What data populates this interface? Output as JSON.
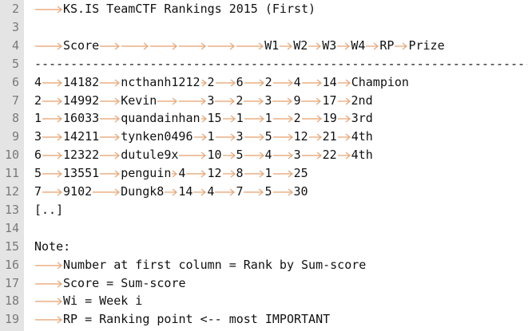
{
  "editor": {
    "line_numbers": [
      "2",
      "3",
      "4",
      "5",
      "6",
      "7",
      "8",
      "9",
      "10",
      "11",
      "12",
      "13",
      "14",
      "15",
      "16",
      "17",
      "18",
      "19"
    ],
    "tab_arrow_color": "#e8a97a",
    "lines": [
      [
        {
          "tab": 1
        },
        {
          "t": "KS.IS TeamCTF Rankings 2015 (First)"
        }
      ],
      [],
      [
        {
          "tab": 1
        },
        {
          "t": "Score"
        },
        {
          "tab": 6
        },
        {
          "t": "W1"
        },
        {
          "tab": 1
        },
        {
          "t": "W2"
        },
        {
          "tab": 1
        },
        {
          "t": "W3"
        },
        {
          "tab": 1
        },
        {
          "t": "W4"
        },
        {
          "tab": 1
        },
        {
          "t": "RP"
        },
        {
          "tab": 1
        },
        {
          "t": "Prize"
        }
      ],
      [
        {
          "t": "-----------------------------------------------------------------------"
        }
      ],
      [
        {
          "t": "4"
        },
        {
          "tab": 1
        },
        {
          "t": "14182"
        },
        {
          "tab": 1
        },
        {
          "t": "ncthanh1212"
        },
        {
          "tab": 1
        },
        {
          "t": "2"
        },
        {
          "tab": 1
        },
        {
          "t": "6"
        },
        {
          "tab": 1
        },
        {
          "t": "2"
        },
        {
          "tab": 1
        },
        {
          "t": "4"
        },
        {
          "tab": 1
        },
        {
          "t": "14"
        },
        {
          "tab": 1
        },
        {
          "t": "Champion"
        }
      ],
      [
        {
          "t": "2"
        },
        {
          "tab": 1
        },
        {
          "t": "14992"
        },
        {
          "tab": 1
        },
        {
          "t": "Kevin"
        },
        {
          "tab": 2
        },
        {
          "t": "3"
        },
        {
          "tab": 1
        },
        {
          "t": "2"
        },
        {
          "tab": 1
        },
        {
          "t": "3"
        },
        {
          "tab": 1
        },
        {
          "t": "9"
        },
        {
          "tab": 1
        },
        {
          "t": "17"
        },
        {
          "tab": 1
        },
        {
          "t": "2nd"
        }
      ],
      [
        {
          "t": "1"
        },
        {
          "tab": 1
        },
        {
          "t": "16033"
        },
        {
          "tab": 1
        },
        {
          "t": "quandainhan"
        },
        {
          "tab": 1
        },
        {
          "t": "15"
        },
        {
          "tab": 1
        },
        {
          "t": "1"
        },
        {
          "tab": 1
        },
        {
          "t": "1"
        },
        {
          "tab": 1
        },
        {
          "t": "2"
        },
        {
          "tab": 1
        },
        {
          "t": "19"
        },
        {
          "tab": 1
        },
        {
          "t": "3rd"
        }
      ],
      [
        {
          "t": "3"
        },
        {
          "tab": 1
        },
        {
          "t": "14211"
        },
        {
          "tab": 1
        },
        {
          "t": "tynken0496"
        },
        {
          "tab": 1
        },
        {
          "t": "1"
        },
        {
          "tab": 1
        },
        {
          "t": "3"
        },
        {
          "tab": 1
        },
        {
          "t": "5"
        },
        {
          "tab": 1
        },
        {
          "t": "12"
        },
        {
          "tab": 1
        },
        {
          "t": "21"
        },
        {
          "tab": 1
        },
        {
          "t": "4th"
        }
      ],
      [
        {
          "t": "6"
        },
        {
          "tab": 1
        },
        {
          "t": "12322"
        },
        {
          "tab": 1
        },
        {
          "t": "dutule9x"
        },
        {
          "tab": 1
        },
        {
          "t": "10"
        },
        {
          "tab": 1
        },
        {
          "t": "5"
        },
        {
          "tab": 1
        },
        {
          "t": "4"
        },
        {
          "tab": 1
        },
        {
          "t": "3"
        },
        {
          "tab": 1
        },
        {
          "t": "22"
        },
        {
          "tab": 1
        },
        {
          "t": "4th"
        }
      ],
      [
        {
          "t": "5"
        },
        {
          "tab": 1
        },
        {
          "t": "13551"
        },
        {
          "tab": 1
        },
        {
          "t": "penguin"
        },
        {
          "tab": 1
        },
        {
          "t": "4"
        },
        {
          "tab": 1
        },
        {
          "t": "12"
        },
        {
          "tab": 1
        },
        {
          "t": "8"
        },
        {
          "tab": 1
        },
        {
          "t": "1"
        },
        {
          "tab": 1
        },
        {
          "t": "25"
        }
      ],
      [
        {
          "t": "7"
        },
        {
          "tab": 1
        },
        {
          "t": "9102"
        },
        {
          "tab": 1
        },
        {
          "t": "Dungk8"
        },
        {
          "tab": 1
        },
        {
          "t": "14"
        },
        {
          "tab": 1
        },
        {
          "t": "4"
        },
        {
          "tab": 1
        },
        {
          "t": "7"
        },
        {
          "tab": 1
        },
        {
          "t": "5"
        },
        {
          "tab": 1
        },
        {
          "t": "30"
        }
      ],
      [
        {
          "t": "[..]"
        }
      ],
      [],
      [
        {
          "t": "Note:"
        }
      ],
      [
        {
          "tab": 1
        },
        {
          "t": "Number at first column = Rank by Sum-score"
        }
      ],
      [
        {
          "tab": 1
        },
        {
          "t": "Score = Sum-score"
        }
      ],
      [
        {
          "tab": 1
        },
        {
          "t": "Wi = Week i"
        }
      ],
      [
        {
          "tab": 1
        },
        {
          "t": "RP = Ranking point <-- most IMPORTANT"
        }
      ]
    ]
  }
}
